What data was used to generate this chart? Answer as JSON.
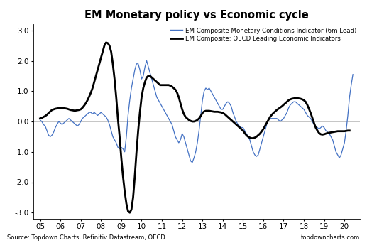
{
  "title": "EM Monetary policy vs Economic cycle",
  "source_left": "Source: Topdown Charts, Refinitiv Datastream, OECD",
  "source_right": "topdowncharts.com",
  "legend_blue": "EM Composite Monetary Conditions Indicator (6m Lead)",
  "legend_black": "EM Composite: OECD Leading Economic Indicators",
  "ylim": [
    -3.2,
    3.2
  ],
  "yticks": [
    -3.0,
    -2.0,
    -1.0,
    0.0,
    1.0,
    2.0,
    3.0
  ],
  "xtick_labels": [
    "05",
    "06",
    "07",
    "08",
    "09",
    "10",
    "11",
    "12",
    "13",
    "14",
    "15",
    "16",
    "17",
    "18",
    "19",
    "20"
  ],
  "blue_color": "#4472C4",
  "black_color": "#000000",
  "blue_x": [
    2005.0,
    2005.083,
    2005.167,
    2005.25,
    2005.333,
    2005.417,
    2005.5,
    2005.583,
    2005.667,
    2005.75,
    2005.833,
    2005.917,
    2006.0,
    2006.083,
    2006.167,
    2006.25,
    2006.333,
    2006.417,
    2006.5,
    2006.583,
    2006.667,
    2006.75,
    2006.833,
    2006.917,
    2007.0,
    2007.083,
    2007.167,
    2007.25,
    2007.333,
    2007.417,
    2007.5,
    2007.583,
    2007.667,
    2007.75,
    2007.833,
    2007.917,
    2008.0,
    2008.083,
    2008.167,
    2008.25,
    2008.333,
    2008.417,
    2008.5,
    2008.583,
    2008.667,
    2008.75,
    2008.833,
    2008.917,
    2009.0,
    2009.083,
    2009.167,
    2009.25,
    2009.333,
    2009.417,
    2009.5,
    2009.583,
    2009.667,
    2009.75,
    2009.833,
    2009.917,
    2010.0,
    2010.083,
    2010.167,
    2010.25,
    2010.333,
    2010.417,
    2010.5,
    2010.583,
    2010.667,
    2010.75,
    2010.833,
    2010.917,
    2011.0,
    2011.083,
    2011.167,
    2011.25,
    2011.333,
    2011.417,
    2011.5,
    2011.583,
    2011.667,
    2011.75,
    2011.833,
    2011.917,
    2012.0,
    2012.083,
    2012.167,
    2012.25,
    2012.333,
    2012.417,
    2012.5,
    2012.583,
    2012.667,
    2012.75,
    2012.833,
    2012.917,
    2013.0,
    2013.083,
    2013.167,
    2013.25,
    2013.333,
    2013.417,
    2013.5,
    2013.583,
    2013.667,
    2013.75,
    2013.833,
    2013.917,
    2014.0,
    2014.083,
    2014.167,
    2014.25,
    2014.333,
    2014.417,
    2014.5,
    2014.583,
    2014.667,
    2014.75,
    2014.833,
    2014.917,
    2015.0,
    2015.083,
    2015.167,
    2015.25,
    2015.333,
    2015.417,
    2015.5,
    2015.583,
    2015.667,
    2015.75,
    2015.833,
    2015.917,
    2016.0,
    2016.083,
    2016.167,
    2016.25,
    2016.333,
    2016.417,
    2016.5,
    2016.583,
    2016.667,
    2016.75,
    2016.833,
    2016.917,
    2017.0,
    2017.083,
    2017.167,
    2017.25,
    2017.333,
    2017.417,
    2017.5,
    2017.583,
    2017.667,
    2017.75,
    2017.833,
    2017.917,
    2018.0,
    2018.083,
    2018.167,
    2018.25,
    2018.333,
    2018.417,
    2018.5,
    2018.583,
    2018.667,
    2018.75,
    2018.833,
    2018.917,
    2019.0,
    2019.083,
    2019.167,
    2019.25,
    2019.333,
    2019.417,
    2019.5,
    2019.583,
    2019.667,
    2019.75,
    2019.833,
    2019.917,
    2020.0,
    2020.083,
    2020.167,
    2020.25,
    2020.333,
    2020.417
  ],
  "blue_y": [
    0.05,
    0.0,
    -0.1,
    -0.15,
    -0.3,
    -0.45,
    -0.5,
    -0.45,
    -0.35,
    -0.2,
    -0.1,
    0.0,
    -0.05,
    -0.1,
    -0.05,
    0.0,
    0.05,
    0.1,
    0.05,
    0.0,
    -0.05,
    -0.1,
    -0.15,
    -0.1,
    0.0,
    0.1,
    0.15,
    0.2,
    0.25,
    0.3,
    0.3,
    0.25,
    0.3,
    0.25,
    0.2,
    0.25,
    0.3,
    0.25,
    0.2,
    0.15,
    0.05,
    -0.1,
    -0.3,
    -0.5,
    -0.6,
    -0.7,
    -0.85,
    -0.9,
    -0.85,
    -0.9,
    -1.0,
    -0.5,
    0.2,
    0.7,
    1.1,
    1.4,
    1.7,
    1.9,
    1.9,
    1.7,
    1.4,
    1.5,
    1.8,
    2.0,
    1.8,
    1.6,
    1.4,
    1.2,
    1.0,
    0.8,
    0.7,
    0.6,
    0.5,
    0.4,
    0.3,
    0.2,
    0.1,
    0.0,
    -0.1,
    -0.3,
    -0.5,
    -0.6,
    -0.7,
    -0.6,
    -0.4,
    -0.5,
    -0.7,
    -0.9,
    -1.1,
    -1.3,
    -1.35,
    -1.2,
    -1.0,
    -0.7,
    -0.3,
    0.2,
    0.7,
    1.0,
    1.1,
    1.05,
    1.1,
    1.0,
    0.9,
    0.8,
    0.7,
    0.6,
    0.5,
    0.4,
    0.4,
    0.5,
    0.6,
    0.65,
    0.6,
    0.5,
    0.3,
    0.15,
    0.0,
    -0.1,
    -0.15,
    -0.2,
    -0.2,
    -0.3,
    -0.4,
    -0.5,
    -0.6,
    -0.8,
    -1.0,
    -1.1,
    -1.15,
    -1.1,
    -0.9,
    -0.7,
    -0.5,
    -0.3,
    -0.1,
    0.05,
    0.1,
    0.1,
    0.1,
    0.1,
    0.1,
    0.05,
    0.0,
    0.05,
    0.1,
    0.2,
    0.3,
    0.45,
    0.55,
    0.6,
    0.65,
    0.65,
    0.6,
    0.55,
    0.5,
    0.45,
    0.4,
    0.3,
    0.2,
    0.15,
    0.1,
    0.0,
    -0.1,
    -0.15,
    -0.2,
    -0.25,
    -0.2,
    -0.15,
    -0.2,
    -0.3,
    -0.35,
    -0.4,
    -0.5,
    -0.6,
    -0.8,
    -1.0,
    -1.1,
    -1.2,
    -1.1,
    -0.9,
    -0.7,
    -0.3,
    0.2,
    0.8,
    1.2,
    1.55
  ],
  "black_x": [
    2005.0,
    2005.083,
    2005.167,
    2005.25,
    2005.333,
    2005.417,
    2005.5,
    2005.583,
    2005.667,
    2005.75,
    2005.833,
    2005.917,
    2006.0,
    2006.083,
    2006.167,
    2006.25,
    2006.333,
    2006.417,
    2006.5,
    2006.583,
    2006.667,
    2006.75,
    2006.833,
    2006.917,
    2007.0,
    2007.083,
    2007.167,
    2007.25,
    2007.333,
    2007.417,
    2007.5,
    2007.583,
    2007.667,
    2007.75,
    2007.833,
    2007.917,
    2008.0,
    2008.083,
    2008.167,
    2008.25,
    2008.333,
    2008.417,
    2008.5,
    2008.583,
    2008.667,
    2008.75,
    2008.833,
    2008.917,
    2009.0,
    2009.083,
    2009.167,
    2009.25,
    2009.333,
    2009.417,
    2009.5,
    2009.583,
    2009.667,
    2009.75,
    2009.833,
    2009.917,
    2010.0,
    2010.083,
    2010.167,
    2010.25,
    2010.333,
    2010.417,
    2010.5,
    2010.583,
    2010.667,
    2010.75,
    2010.833,
    2010.917,
    2011.0,
    2011.083,
    2011.167,
    2011.25,
    2011.333,
    2011.417,
    2011.5,
    2011.583,
    2011.667,
    2011.75,
    2011.833,
    2011.917,
    2012.0,
    2012.083,
    2012.167,
    2012.25,
    2012.333,
    2012.417,
    2012.5,
    2012.583,
    2012.667,
    2012.75,
    2012.833,
    2012.917,
    2013.0,
    2013.083,
    2013.167,
    2013.25,
    2013.333,
    2013.417,
    2013.5,
    2013.583,
    2013.667,
    2013.75,
    2013.833,
    2013.917,
    2014.0,
    2014.083,
    2014.167,
    2014.25,
    2014.333,
    2014.417,
    2014.5,
    2014.583,
    2014.667,
    2014.75,
    2014.833,
    2014.917,
    2015.0,
    2015.083,
    2015.167,
    2015.25,
    2015.333,
    2015.417,
    2015.5,
    2015.583,
    2015.667,
    2015.75,
    2015.833,
    2015.917,
    2016.0,
    2016.083,
    2016.167,
    2016.25,
    2016.333,
    2016.417,
    2016.5,
    2016.583,
    2016.667,
    2016.75,
    2016.833,
    2016.917,
    2017.0,
    2017.083,
    2017.167,
    2017.25,
    2017.333,
    2017.417,
    2017.5,
    2017.583,
    2017.667,
    2017.75,
    2017.833,
    2017.917,
    2018.0,
    2018.083,
    2018.167,
    2018.25,
    2018.333,
    2018.417,
    2018.5,
    2018.583,
    2018.667,
    2018.75,
    2018.833,
    2018.917,
    2019.0,
    2019.083,
    2019.167,
    2019.25,
    2019.333,
    2019.417,
    2019.5,
    2019.583,
    2019.667,
    2019.75,
    2019.833,
    2019.917,
    2020.0,
    2020.083,
    2020.167,
    2020.25
  ],
  "black_y": [
    0.1,
    0.12,
    0.15,
    0.18,
    0.22,
    0.28,
    0.33,
    0.38,
    0.4,
    0.42,
    0.43,
    0.44,
    0.45,
    0.45,
    0.44,
    0.43,
    0.42,
    0.4,
    0.38,
    0.37,
    0.36,
    0.36,
    0.37,
    0.38,
    0.4,
    0.45,
    0.52,
    0.6,
    0.7,
    0.82,
    0.95,
    1.1,
    1.3,
    1.5,
    1.7,
    1.9,
    2.1,
    2.3,
    2.5,
    2.6,
    2.58,
    2.5,
    2.3,
    1.9,
    1.4,
    0.8,
    0.1,
    -0.5,
    -1.2,
    -1.8,
    -2.3,
    -2.7,
    -2.95,
    -3.0,
    -2.9,
    -2.5,
    -1.8,
    -1.0,
    -0.3,
    0.3,
    0.8,
    1.1,
    1.3,
    1.45,
    1.5,
    1.5,
    1.45,
    1.4,
    1.35,
    1.3,
    1.25,
    1.2,
    1.2,
    1.2,
    1.2,
    1.2,
    1.2,
    1.18,
    1.15,
    1.1,
    1.05,
    0.95,
    0.8,
    0.6,
    0.4,
    0.25,
    0.15,
    0.1,
    0.05,
    0.02,
    0.0,
    0.0,
    0.02,
    0.05,
    0.1,
    0.18,
    0.28,
    0.33,
    0.35,
    0.35,
    0.35,
    0.34,
    0.33,
    0.32,
    0.32,
    0.32,
    0.31,
    0.3,
    0.28,
    0.25,
    0.2,
    0.15,
    0.1,
    0.05,
    0.0,
    -0.05,
    -0.1,
    -0.15,
    -0.2,
    -0.25,
    -0.3,
    -0.38,
    -0.45,
    -0.5,
    -0.53,
    -0.55,
    -0.55,
    -0.53,
    -0.5,
    -0.45,
    -0.4,
    -0.33,
    -0.25,
    -0.15,
    -0.05,
    0.05,
    0.15,
    0.22,
    0.28,
    0.33,
    0.38,
    0.42,
    0.46,
    0.5,
    0.55,
    0.6,
    0.65,
    0.7,
    0.73,
    0.75,
    0.76,
    0.77,
    0.77,
    0.76,
    0.75,
    0.73,
    0.7,
    0.65,
    0.55,
    0.42,
    0.28,
    0.12,
    -0.05,
    -0.2,
    -0.3,
    -0.38,
    -0.42,
    -0.43,
    -0.42,
    -0.4,
    -0.38,
    -0.37,
    -0.36,
    -0.35,
    -0.34,
    -0.33,
    -0.32,
    -0.32,
    -0.32,
    -0.32,
    -0.32,
    -0.31,
    -0.3,
    -0.3
  ]
}
